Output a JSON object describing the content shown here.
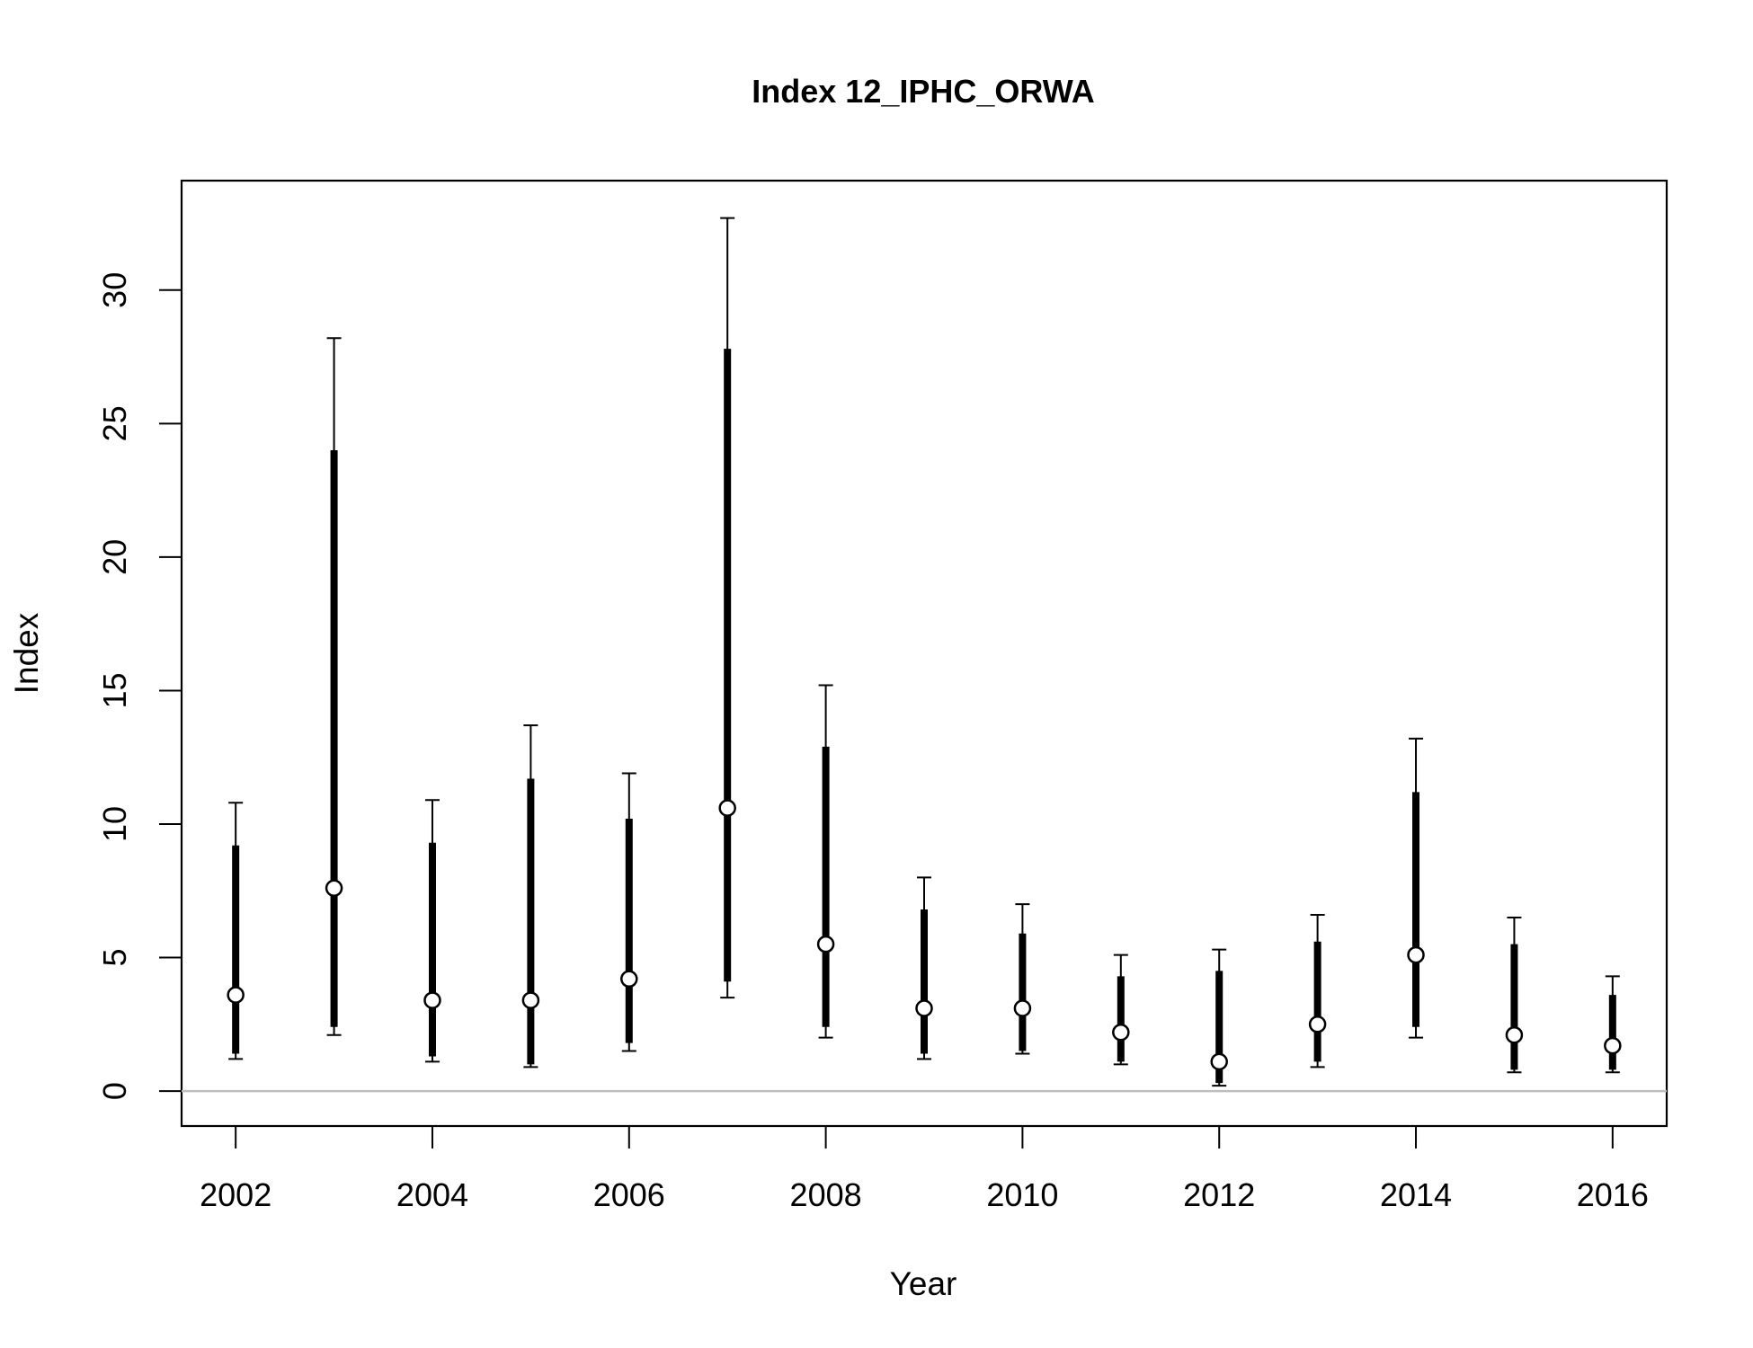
{
  "chart_data": {
    "type": "scatter",
    "title": "Index 12_IPHC_ORWA",
    "xlabel": "Year",
    "ylabel": "Index",
    "x": [
      2002,
      2003,
      2004,
      2005,
      2006,
      2007,
      2008,
      2009,
      2010,
      2011,
      2012,
      2013,
      2014,
      2015,
      2016
    ],
    "series": [
      {
        "values": [
          3.6,
          7.6,
          3.4,
          3.4,
          4.2,
          10.6,
          5.5,
          3.1,
          3.1,
          2.2,
          1.1,
          2.5,
          5.1,
          2.1,
          1.7
        ],
        "inner_low": [
          1.4,
          2.4,
          1.3,
          1.0,
          1.8,
          4.1,
          2.4,
          1.4,
          1.5,
          1.1,
          0.3,
          1.1,
          2.4,
          0.8,
          0.8
        ],
        "inner_high": [
          9.2,
          24.0,
          9.3,
          11.7,
          10.2,
          27.8,
          12.9,
          6.8,
          5.9,
          4.3,
          4.5,
          5.6,
          11.2,
          5.5,
          3.6
        ],
        "outer_low": [
          1.2,
          2.1,
          1.1,
          0.9,
          1.5,
          3.5,
          2.0,
          1.2,
          1.4,
          1.0,
          0.2,
          0.9,
          2.0,
          0.7,
          0.7
        ],
        "outer_high": [
          10.8,
          28.2,
          10.9,
          13.7,
          11.9,
          32.7,
          15.2,
          8.0,
          7.0,
          5.1,
          5.3,
          6.6,
          13.2,
          6.5,
          4.3
        ]
      }
    ],
    "xticks": [
      "2002",
      "2004",
      "2006",
      "2008",
      "2010",
      "2012",
      "2014",
      "2016"
    ],
    "yticks": [
      "0",
      "5",
      "10",
      "15",
      "20",
      "25",
      "30"
    ],
    "xlim": [
      2001.45,
      2016.55
    ],
    "ylim": [
      -1.31,
      34.1
    ],
    "reference_line": 0,
    "colors": {
      "points": "#000000",
      "point_fill": "#ffffff",
      "reference_line": "#bebebe",
      "frame": "#000000"
    },
    "grid": false
  }
}
